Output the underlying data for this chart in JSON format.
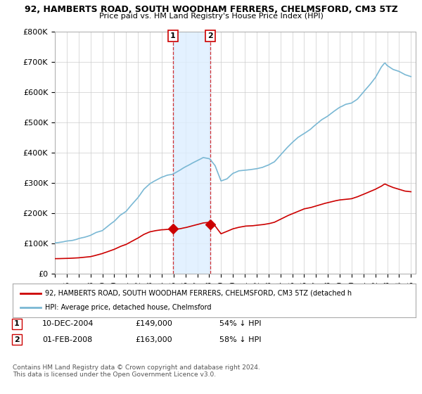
{
  "title": "92, HAMBERTS ROAD, SOUTH WOODHAM FERRERS, CHELMSFORD, CM3 5TZ",
  "subtitle": "Price paid vs. HM Land Registry's House Price Index (HPI)",
  "hpi_color": "#7ab8d4",
  "price_color": "#cc0000",
  "marker_color": "#cc0000",
  "shading_color": "#ddeeff",
  "vline_color": "#cc0000",
  "background_color": "#ffffff",
  "grid_color": "#cccccc",
  "ylim": [
    0,
    800000
  ],
  "yticks": [
    0,
    100000,
    200000,
    300000,
    400000,
    500000,
    600000,
    700000,
    800000
  ],
  "ytick_labels": [
    "£0",
    "£100K",
    "£200K",
    "£300K",
    "£400K",
    "£500K",
    "£600K",
    "£700K",
    "£800K"
  ],
  "legend_property_label": "92, HAMBERTS ROAD, SOUTH WOODHAM FERRERS, CHELMSFORD, CM3 5TZ (detached h",
  "legend_hpi_label": "HPI: Average price, detached house, Chelmsford",
  "transaction1_date": "10-DEC-2004",
  "transaction1_price": 149000,
  "transaction1_pct": "54% ↓ HPI",
  "transaction2_date": "01-FEB-2008",
  "transaction2_price": 163000,
  "transaction2_pct": "58% ↓ HPI",
  "transaction1_x": 2004.95,
  "transaction2_x": 2008.08,
  "shade_x1": 2004.95,
  "shade_x2": 2008.08,
  "footnote": "Contains HM Land Registry data © Crown copyright and database right 2024.\nThis data is licensed under the Open Government Licence v3.0.",
  "xlim_start": 1995.0,
  "xlim_end": 2025.4
}
